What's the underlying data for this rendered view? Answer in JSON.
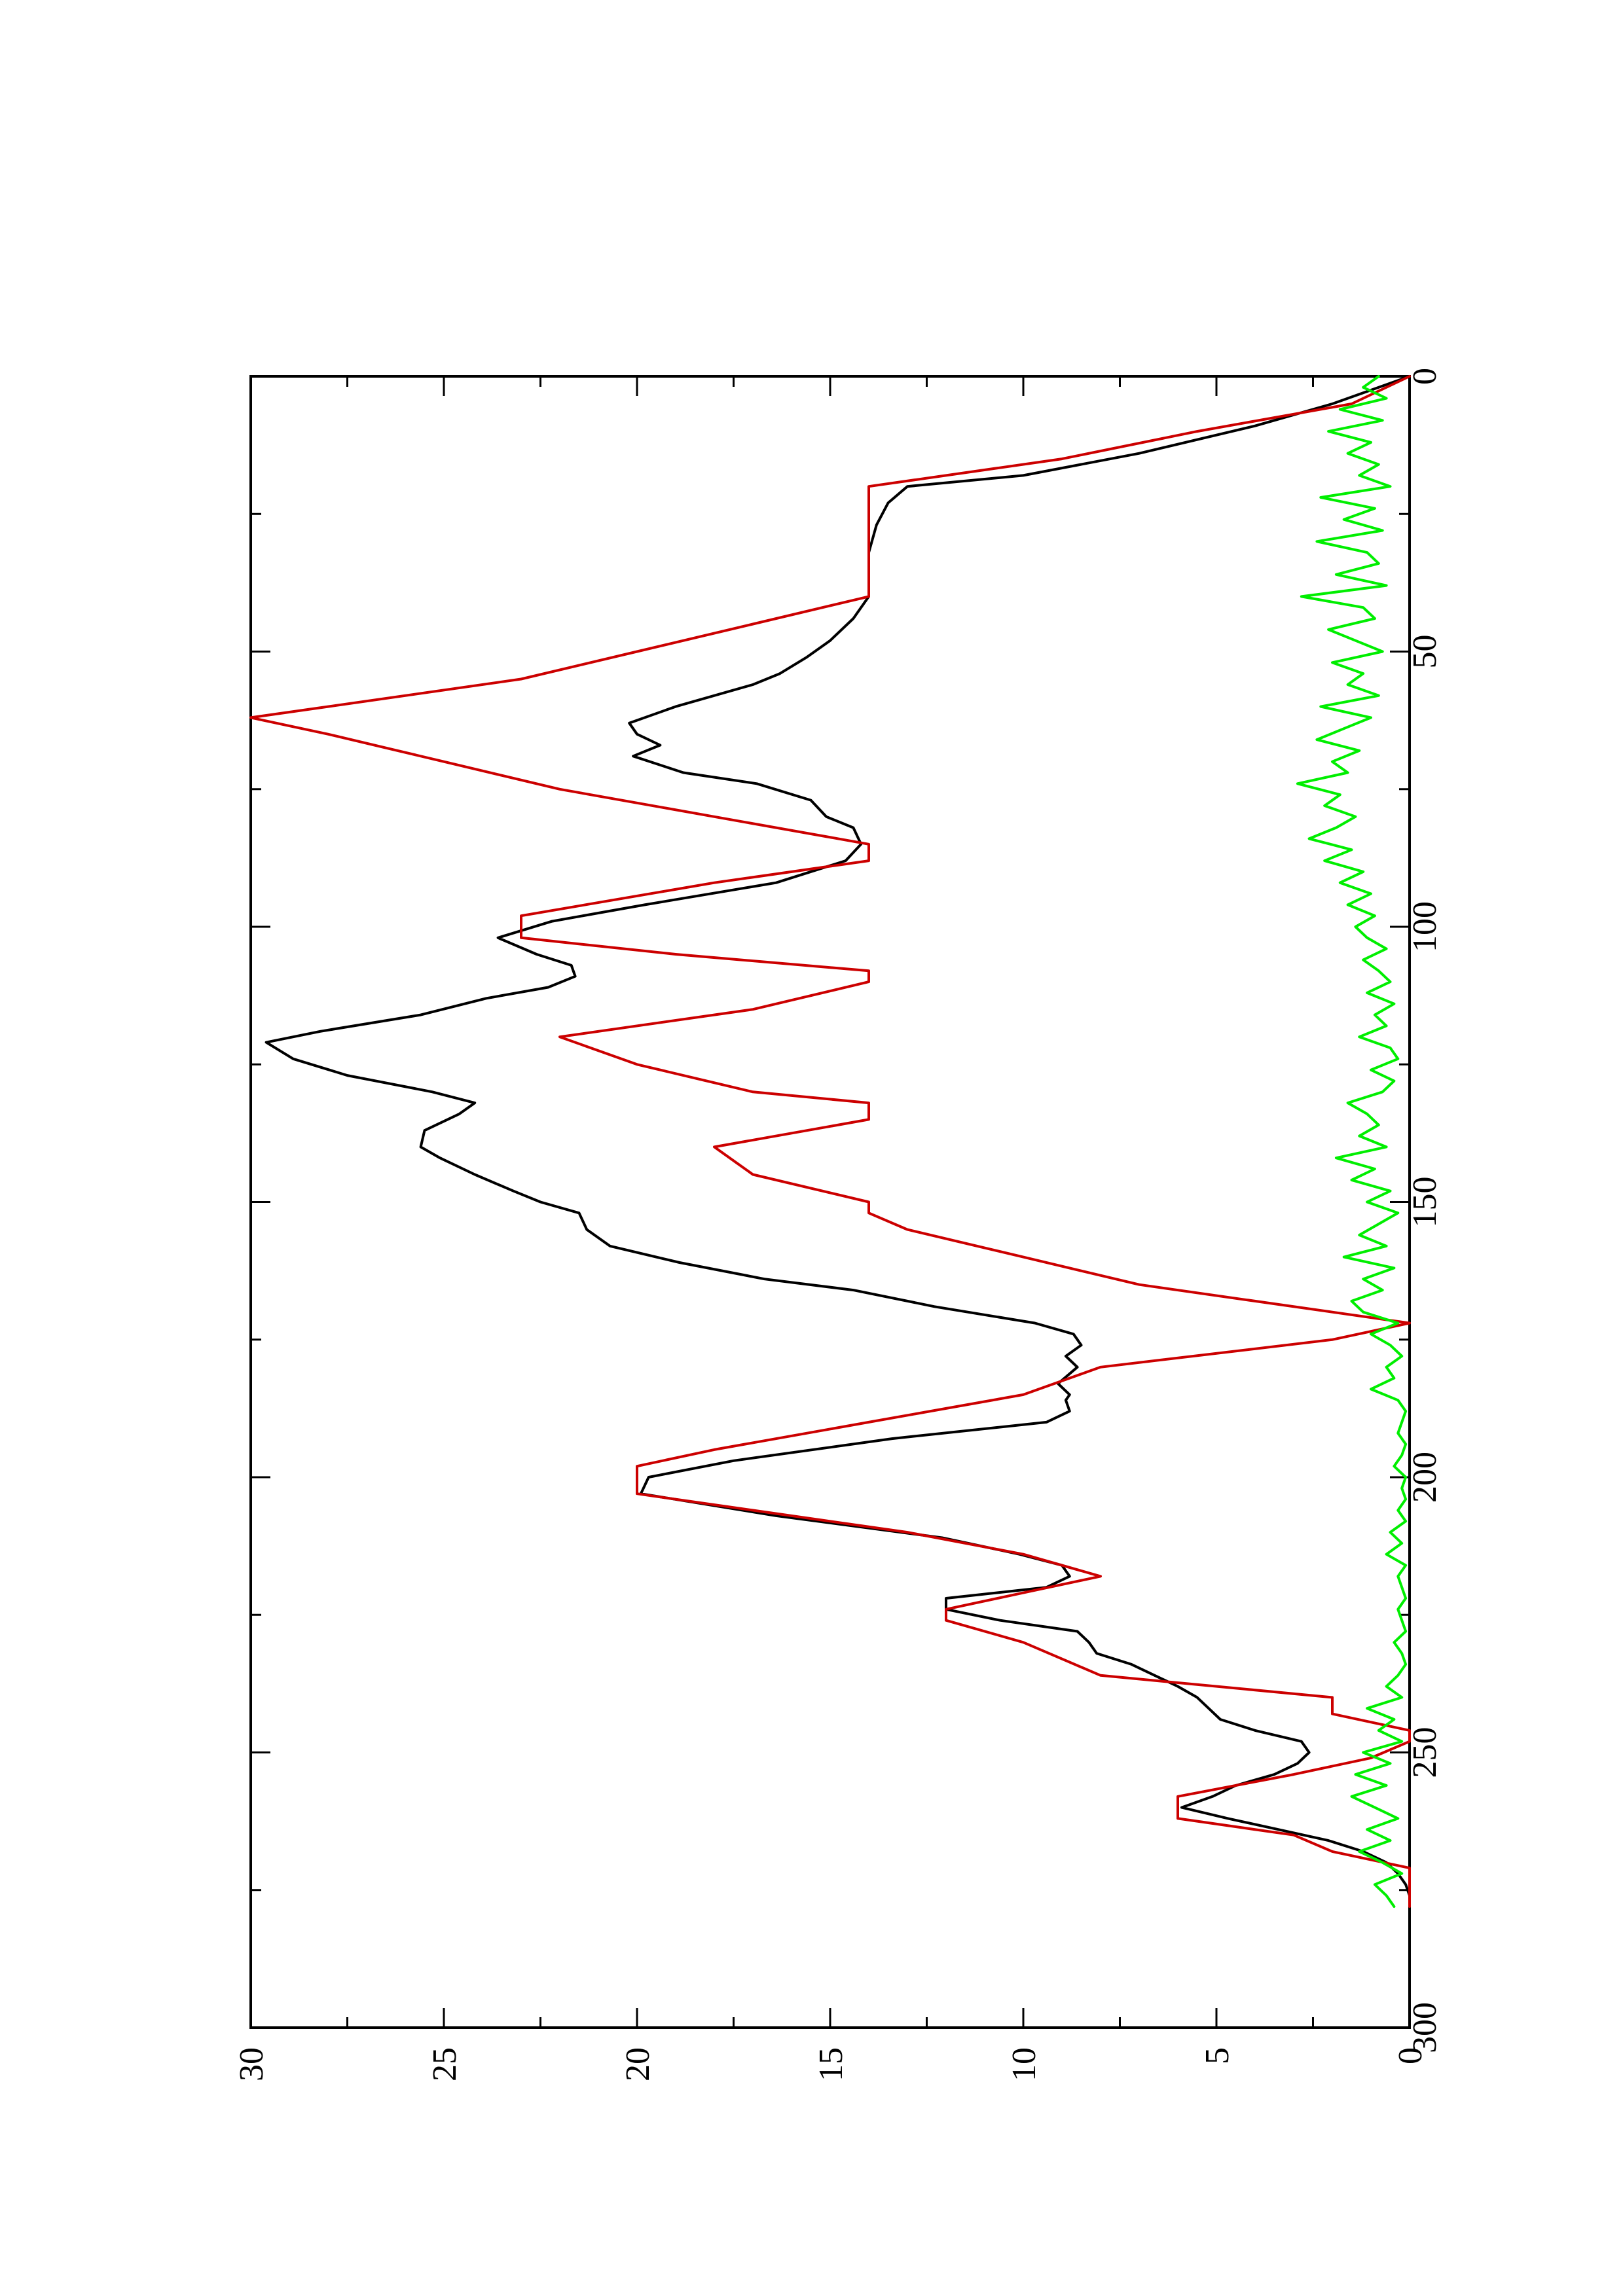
{
  "chart_data": {
    "type": "line",
    "orientation": "rotated 90° counter-clockwise",
    "title": "",
    "xlabel": "",
    "ylabel": "",
    "xlim": [
      0,
      300
    ],
    "ylim": [
      0,
      30
    ],
    "x_ticks": [
      "0",
      "50",
      "100",
      "150",
      "200",
      "250",
      "300"
    ],
    "y_ticks": [
      "0",
      "5",
      "10",
      "15",
      "20",
      "25",
      "30"
    ],
    "grid": false,
    "legend": "none",
    "series": [
      {
        "color": "#000000",
        "x": [
          0,
          5,
          9,
          14,
          18,
          20,
          23,
          27,
          32,
          36,
          40,
          44,
          48,
          51,
          54,
          56,
          60,
          63,
          65,
          67,
          69,
          72,
          74,
          77,
          80,
          82,
          85,
          88,
          92,
          96,
          99,
          102,
          105,
          107,
          109,
          111,
          113,
          116,
          119,
          121,
          124,
          127,
          130,
          132,
          134,
          137,
          140,
          142,
          145,
          148,
          150,
          152,
          155,
          158,
          161,
          164,
          166,
          169,
          172,
          174,
          176,
          178,
          180,
          183,
          185,
          186,
          188,
          190,
          193,
          197,
          200,
          203,
          207,
          211,
          214,
          216,
          218,
          220,
          222,
          224,
          226,
          228,
          230,
          232,
          234,
          236,
          238,
          240,
          242,
          244,
          246,
          248,
          250,
          252,
          254,
          256,
          258,
          260,
          262,
          264,
          266,
          268,
          270,
          272,
          274,
          276,
          278
        ],
        "y": [
          0,
          2,
          4,
          7,
          10,
          13,
          13.5,
          13.8,
          14,
          14,
          14,
          14.4,
          15,
          15.6,
          16.3,
          17,
          19,
          20.2,
          20,
          19.4,
          20.1,
          18.8,
          16.9,
          15.5,
          15.1,
          14.4,
          14.2,
          14.6,
          16.4,
          19.8,
          22.2,
          23.6,
          22.6,
          21.7,
          21.6,
          22.3,
          23.9,
          25.6,
          28.2,
          29.6,
          28.9,
          27.5,
          25.3,
          24.2,
          24.6,
          25.5,
          25.6,
          25.1,
          24.2,
          23.2,
          22.5,
          21.5,
          21.3,
          20.7,
          18.9,
          16.7,
          14.4,
          12.3,
          9.7,
          8.7,
          8.5,
          8.9,
          8.6,
          9.1,
          8.8,
          8.9,
          8.8,
          9.4,
          13.4,
          17.5,
          19.7,
          19.9,
          16.4,
          12.1,
          10.1,
          9,
          8.8,
          9.4,
          12,
          12,
          10.6,
          8.6,
          8.3,
          8.1,
          7.2,
          6.6,
          6,
          5.5,
          5.2,
          4.9,
          4,
          2.8,
          2.6,
          2.9,
          3.5,
          4.5,
          5.1,
          5.9,
          4.7,
          3.4,
          2.1,
          1.2,
          0.6,
          0.3,
          0.1,
          0,
          0
        ]
      },
      {
        "color": "#cc0000",
        "x": [
          0,
          5,
          10,
          15,
          20,
          25,
          30,
          35,
          40,
          45,
          50,
          55,
          60,
          62,
          65,
          70,
          75,
          80,
          85,
          88,
          92,
          98,
          102,
          105,
          108,
          110,
          115,
          120,
          125,
          130,
          132,
          135,
          140,
          145,
          150,
          152,
          155,
          160,
          165,
          170,
          172,
          175,
          180,
          185,
          190,
          195,
          198,
          203,
          206,
          210,
          214,
          218,
          221,
          224,
          226,
          230,
          236,
          240,
          243,
          246,
          248,
          251,
          254,
          258,
          262,
          265,
          268,
          271,
          274,
          278
        ],
        "y": [
          0,
          1.5,
          5.5,
          9,
          14,
          14,
          14,
          14,
          14,
          17,
          20,
          23,
          28,
          30,
          28,
          25,
          22,
          18,
          14,
          14,
          18,
          23,
          23,
          19,
          14,
          14,
          17,
          22,
          20,
          17,
          14,
          14,
          18,
          17,
          14,
          14,
          13,
          10,
          7,
          2,
          0,
          2,
          8,
          10,
          14,
          18,
          20,
          20,
          17,
          13,
          10,
          8,
          10,
          12,
          12,
          10,
          8,
          2,
          2,
          0,
          0,
          1,
          3,
          6,
          6,
          3,
          2,
          0,
          0,
          0
        ]
      },
      {
        "color": "#00ee00",
        "x": [
          0,
          2,
          4,
          6,
          8,
          10,
          12,
          14,
          16,
          18,
          20,
          22,
          24,
          26,
          28,
          30,
          32,
          34,
          36,
          38,
          40,
          42,
          44,
          46,
          48,
          50,
          52,
          54,
          56,
          58,
          60,
          62,
          64,
          66,
          68,
          70,
          72,
          74,
          76,
          78,
          80,
          82,
          84,
          86,
          88,
          90,
          92,
          94,
          96,
          98,
          100,
          102,
          104,
          106,
          108,
          110,
          112,
          114,
          116,
          118,
          120,
          122,
          124,
          126,
          128,
          130,
          132,
          134,
          136,
          138,
          140,
          142,
          144,
          146,
          148,
          150,
          152,
          154,
          156,
          158,
          160,
          162,
          164,
          166,
          168,
          170,
          172,
          174,
          176,
          178,
          180,
          182,
          184,
          186,
          188,
          190,
          192,
          194,
          196,
          198,
          200,
          202,
          204,
          206,
          208,
          210,
          212,
          214,
          216,
          218,
          220,
          222,
          224,
          226,
          228,
          230,
          232,
          234,
          236,
          238,
          240,
          242,
          244,
          246,
          248,
          250,
          252,
          254,
          256,
          258,
          260,
          262,
          264,
          266,
          268,
          270,
          272,
          274,
          276,
          278
        ],
        "y": [
          0.8,
          1.2,
          0.6,
          1.8,
          0.7,
          2.1,
          1,
          1.6,
          0.8,
          1.3,
          0.5,
          2.3,
          0.9,
          1.7,
          0.7,
          2.4,
          1.1,
          0.8,
          1.9,
          0.6,
          2.8,
          1.2,
          0.9,
          2.1,
          1.4,
          0.7,
          2,
          1.2,
          1.6,
          0.8,
          2.3,
          1,
          1.7,
          2.4,
          1.3,
          2,
          1.6,
          2.9,
          1.8,
          2.2,
          1.4,
          1.9,
          2.6,
          1.5,
          2.2,
          1.2,
          1.8,
          1,
          1.6,
          0.9,
          1.4,
          1.1,
          0.6,
          1.2,
          0.8,
          0.5,
          1.1,
          0.4,
          0.9,
          0.6,
          1.3,
          0.5,
          0.3,
          1,
          0.4,
          0.7,
          1.6,
          1.1,
          0.8,
          1.3,
          0.6,
          1.9,
          0.9,
          1.5,
          0.5,
          1.1,
          0.3,
          0.8,
          1.3,
          0.6,
          1.7,
          0.4,
          1.2,
          0.7,
          1.5,
          1.2,
          0.3,
          1,
          0.5,
          0.2,
          0.6,
          0.4,
          1,
          0.3,
          0.1,
          0.2,
          0.3,
          0.1,
          0.2,
          0.4,
          0.1,
          0.2,
          0.1,
          0.3,
          0.1,
          0.5,
          0.2,
          0.6,
          0.1,
          0.3,
          0.2,
          0.1,
          0.3,
          0.2,
          0.1,
          0.4,
          0.2,
          0.1,
          0.3,
          0.6,
          0.2,
          1.1,
          0.4,
          0.8,
          0.2,
          1.2,
          0.5,
          1.4,
          0.6,
          1.5,
          0.9,
          0.3,
          1.1,
          0.5,
          1.3,
          0.7,
          0.2,
          0.9,
          0.6,
          0.4
        ]
      }
    ]
  }
}
